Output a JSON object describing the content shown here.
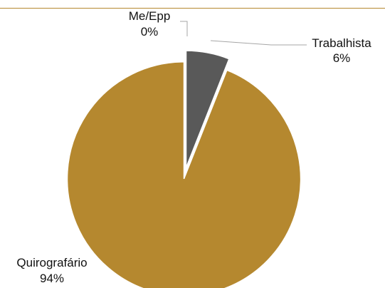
{
  "chart_data": {
    "type": "pie",
    "title": "",
    "categories": [
      "Trabalhista",
      "Quirografário",
      "Me/Epp"
    ],
    "values": [
      6,
      94,
      0
    ],
    "data_labels": [
      {
        "name": "Trabalhista",
        "percent": "6%"
      },
      {
        "name": "Quirografário",
        "percent": "94%"
      },
      {
        "name": "Me/Epp",
        "percent": "0%"
      }
    ],
    "colors": [
      "#595959",
      "#b5882f",
      "#7f7f7f"
    ],
    "legend": "none",
    "exploded": true
  },
  "header_rule_color": "#b5882f"
}
